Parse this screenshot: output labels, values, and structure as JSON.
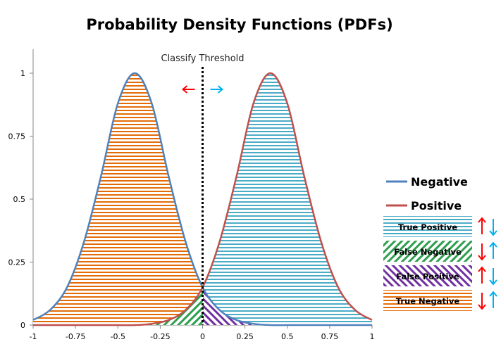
{
  "chart_data": {
    "type": "area",
    "title": "Probability Density Functions (PDFs)",
    "xlim": [
      -1,
      1
    ],
    "ylim": [
      0,
      1
    ],
    "x_ticks": [
      "-1",
      "-0.75",
      "-0.5",
      "-0.25",
      "0",
      "0.25",
      "0.5",
      "0.75",
      "1"
    ],
    "y_ticks": [
      "0",
      "0.25",
      "0.5",
      "0.75",
      "1"
    ],
    "threshold": {
      "x": 0,
      "label": "Classify Threshold"
    },
    "series": [
      {
        "name": "Negative",
        "color": "#4f81bd",
        "x": [
          -1,
          -0.9,
          -0.8,
          -0.7,
          -0.6,
          -0.5,
          -0.4,
          -0.3,
          -0.2,
          -0.1,
          0,
          0.1,
          0.2,
          0.3,
          0.4,
          0.5,
          0.6,
          0.7,
          0.8,
          0.9,
          1
        ],
        "y": [
          0.02,
          0.06,
          0.15,
          0.33,
          0.59,
          0.88,
          1.0,
          0.88,
          0.59,
          0.33,
          0.15,
          0.06,
          0.02,
          0.005,
          0.0,
          0.0,
          0.0,
          0.0,
          0.0,
          0.0,
          0.0
        ]
      },
      {
        "name": "Positive",
        "color": "#c0504d",
        "x": [
          -1,
          -0.9,
          -0.8,
          -0.7,
          -0.6,
          -0.5,
          -0.4,
          -0.3,
          -0.2,
          -0.1,
          0,
          0.1,
          0.2,
          0.3,
          0.4,
          0.5,
          0.6,
          0.7,
          0.8,
          0.9,
          1
        ],
        "y": [
          0.0,
          0.0,
          0.0,
          0.0,
          0.0,
          0.0,
          0.0,
          0.005,
          0.02,
          0.06,
          0.15,
          0.33,
          0.59,
          0.88,
          1.0,
          0.88,
          0.59,
          0.33,
          0.15,
          0.06,
          0.02
        ]
      }
    ],
    "regions": [
      {
        "name": "True Positive",
        "color": "#4bacc6",
        "pattern": "horizontal"
      },
      {
        "name": "False Negative",
        "color": "#2e9e4f",
        "pattern": "diagonal-down"
      },
      {
        "name": "False Positive",
        "color": "#7030a0",
        "pattern": "diagonal-up"
      },
      {
        "name": "True Negative",
        "color": "#e36c09",
        "pattern": "horizontal"
      }
    ],
    "legend_position": "right",
    "arrow_colors": {
      "left": "#ff0000",
      "right": "#00b0f0"
    },
    "grid": false
  }
}
